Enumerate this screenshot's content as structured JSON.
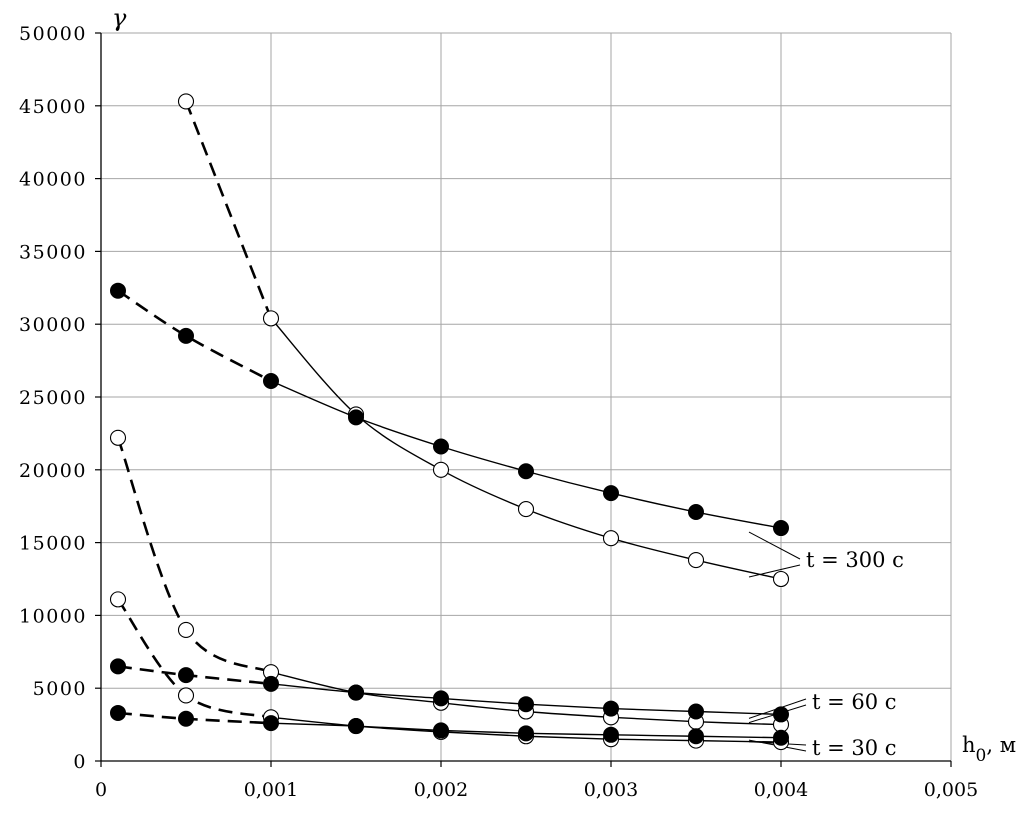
{
  "chart_data": {
    "type": "line",
    "ylabel": "γ",
    "xlabel": "h0, м",
    "xlabel_main": "h",
    "xlabel_sub": "0",
    "xlabel_unit": ", м",
    "xlim": [
      0,
      0.005
    ],
    "ylim": [
      0,
      50000
    ],
    "x_ticks": [
      0,
      0.001,
      0.002,
      0.003,
      0.004,
      0.005
    ],
    "x_tick_labels": [
      "0",
      "0,001",
      "0,002",
      "0,003",
      "0,004",
      "0,005"
    ],
    "y_ticks": [
      0,
      5000,
      10000,
      15000,
      20000,
      25000,
      30000,
      35000,
      40000,
      45000,
      50000
    ],
    "y_tick_labels": [
      "0",
      "5000",
      "10000",
      "15000",
      "20000",
      "25000",
      "30000",
      "35000",
      "40000",
      "45000",
      "50000"
    ],
    "grid": true,
    "annotations": [
      "t = 300 с",
      "t = 60 с",
      "t = 30 с"
    ],
    "series": [
      {
        "marker": "open",
        "x": [
          0.0005,
          0.001,
          0.0015,
          0.002,
          0.0025,
          0.003,
          0.0035,
          0.004
        ],
        "y": [
          45300,
          30400,
          23800,
          20000,
          17300,
          15300,
          13800,
          12500
        ]
      },
      {
        "marker": "filled",
        "x": [
          0.0001,
          0.0005,
          0.001,
          0.0015,
          0.002,
          0.0025,
          0.003,
          0.0035,
          0.004
        ],
        "y": [
          32300,
          29200,
          26100,
          23600,
          21600,
          19900,
          18400,
          17100,
          16000
        ]
      },
      {
        "marker": "open",
        "x": [
          0.0001,
          0.0005,
          0.001,
          0.0015,
          0.002,
          0.0025,
          0.003,
          0.0035,
          0.004
        ],
        "y": [
          22200,
          9000,
          6100,
          4700,
          4000,
          3400,
          3000,
          2700,
          2500
        ]
      },
      {
        "marker": "filled",
        "x": [
          0.0001,
          0.0005,
          0.001,
          0.0015,
          0.002,
          0.0025,
          0.003,
          0.0035,
          0.004
        ],
        "y": [
          6500,
          5900,
          5300,
          4700,
          4300,
          3900,
          3600,
          3400,
          3200
        ]
      },
      {
        "marker": "open",
        "x": [
          0.0001,
          0.0005,
          0.001,
          0.0015,
          0.002,
          0.0025,
          0.003,
          0.0035,
          0.004
        ],
        "y": [
          11100,
          4500,
          3000,
          2400,
          2000,
          1700,
          1500,
          1400,
          1300
        ]
      },
      {
        "marker": "filled",
        "x": [
          0.0001,
          0.0005,
          0.001,
          0.0015,
          0.002,
          0.0025,
          0.003,
          0.0035,
          0.004
        ],
        "y": [
          3300,
          2900,
          2600,
          2400,
          2100,
          1900,
          1800,
          1700,
          1600
        ]
      }
    ]
  }
}
